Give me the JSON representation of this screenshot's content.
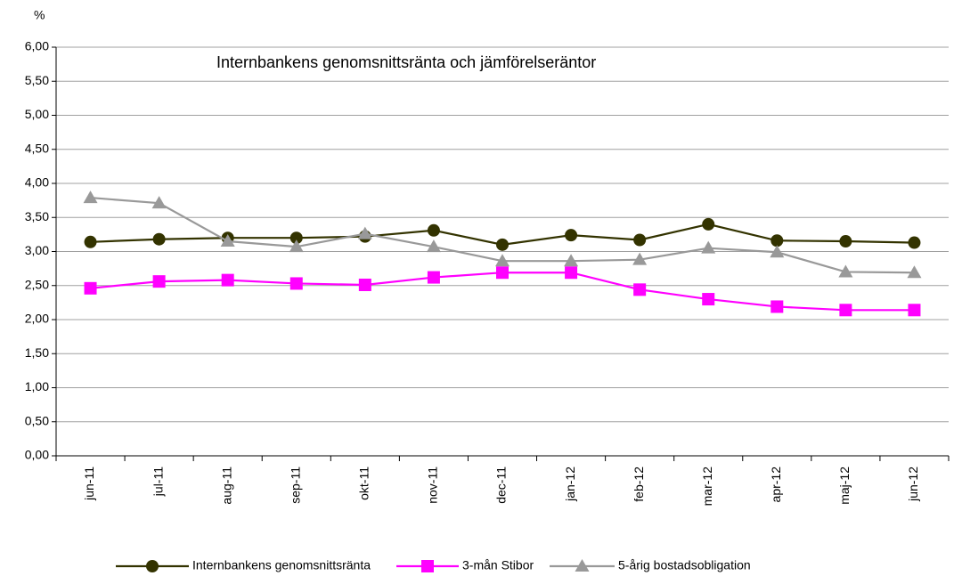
{
  "chart_data": {
    "type": "line",
    "title": "Internbankens genomsnittsränta och jämförelseräntor",
    "y_label": "%",
    "categories": [
      "jun-11",
      "jul-11",
      "aug-11",
      "sep-11",
      "okt-11",
      "nov-11",
      "dec-11",
      "jan-12",
      "feb-12",
      "mar-12",
      "apr-12",
      "maj-12",
      "jun-12"
    ],
    "series": [
      {
        "name": "Internbankens genomsnittsränta",
        "color": "#333300",
        "marker": "circle",
        "values": [
          3.14,
          3.18,
          3.2,
          3.2,
          3.22,
          3.31,
          3.1,
          3.24,
          3.17,
          3.4,
          3.16,
          3.15,
          3.13
        ]
      },
      {
        "name": "3-mån Stibor",
        "color": "#ff00ff",
        "marker": "square",
        "values": [
          2.46,
          2.56,
          2.58,
          2.53,
          2.51,
          2.62,
          2.69,
          2.69,
          2.44,
          2.3,
          2.19,
          2.14,
          2.14
        ]
      },
      {
        "name": "5-årig bostadsobligation",
        "color": "#999999",
        "marker": "triangle",
        "values": [
          3.79,
          3.71,
          3.15,
          3.07,
          3.26,
          3.07,
          2.86,
          2.86,
          2.88,
          3.05,
          2.99,
          2.7,
          2.69
        ]
      }
    ],
    "ylim": [
      0,
      6
    ],
    "yticks": [
      {
        "value": 0,
        "label": "0,00"
      },
      {
        "value": 0.5,
        "label": "0,50"
      },
      {
        "value": 1,
        "label": "1,00"
      },
      {
        "value": 1.5,
        "label": "1,50"
      },
      {
        "value": 2,
        "label": "2,00"
      },
      {
        "value": 2.5,
        "label": "2,50"
      },
      {
        "value": 3,
        "label": "3,00"
      },
      {
        "value": 3.5,
        "label": "3,50"
      },
      {
        "value": 4,
        "label": "4,00"
      },
      {
        "value": 4.5,
        "label": "4,50"
      },
      {
        "value": 5,
        "label": "5,00"
      },
      {
        "value": 5.5,
        "label": "5,50"
      },
      {
        "value": 6,
        "label": "6,00"
      }
    ],
    "grid": true
  }
}
